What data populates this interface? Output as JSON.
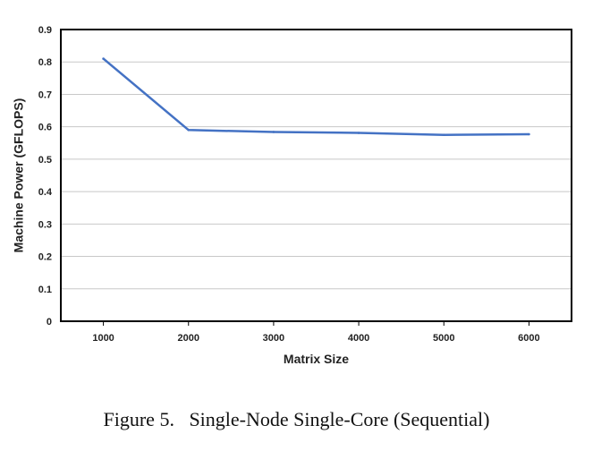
{
  "chart_data": {
    "type": "line",
    "title": "",
    "xlabel": "Matrix Size",
    "ylabel": "Machine Power (GFLOPS)",
    "x": [
      1000,
      2000,
      3000,
      4000,
      5000,
      6000
    ],
    "series": [
      {
        "values": [
          0.81,
          0.59,
          0.584,
          0.581,
          0.575,
          0.577
        ]
      }
    ],
    "ylim": [
      0,
      0.9
    ],
    "yticks": [
      "0",
      "0.1",
      "0.2",
      "0.3",
      "0.4",
      "0.5",
      "0.6",
      "0.7",
      "0.8",
      "0.9"
    ],
    "xticks": [
      "1000",
      "2000",
      "3000",
      "4000",
      "5000",
      "6000"
    ],
    "grid": "horizontal",
    "legend": "none",
    "line_color": "#4472c4",
    "grid_color": "#c8c8c8"
  },
  "caption": "Figure 5.   Single-Node Single-Core (Sequential)"
}
